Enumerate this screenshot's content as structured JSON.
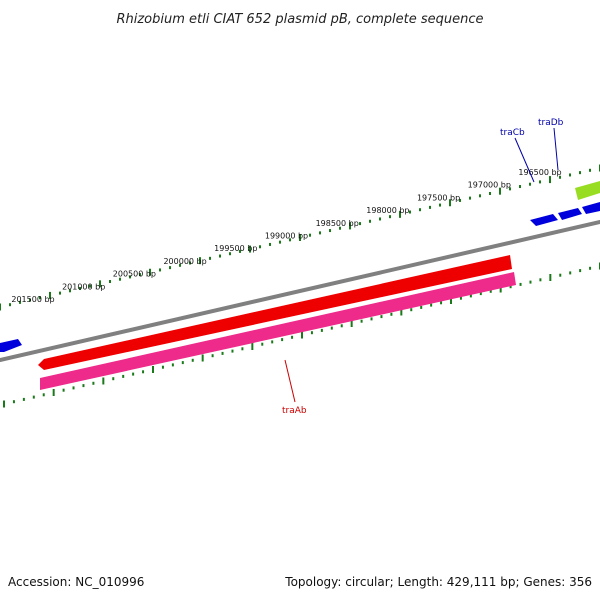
{
  "title": "Rhizobium etli CIAT 652 plasmid pB, complete sequence",
  "footer": {
    "accession": "Accession: NC_010996",
    "summary": "Topology: circular; Length: 429,111 bp; Genes: 356"
  },
  "colors": {
    "backbone": "#808080",
    "ticks": "#1a7a1a",
    "gene_blue": "#0000dd",
    "gene_red": "#ee0000",
    "gene_pink": "#ee2a8a",
    "gene_lime": "#99dd22",
    "label_red": "#cc0000",
    "label_blue": "#0000aa"
  },
  "ticks": [
    {
      "label": "196500 bp"
    },
    {
      "label": "197000 bp"
    },
    {
      "label": "197500 bp"
    },
    {
      "label": "198000 bp"
    },
    {
      "label": "198500 bp"
    },
    {
      "label": "199000 bp"
    },
    {
      "label": "199500 bp"
    },
    {
      "label": "200000 bp"
    },
    {
      "label": "200500 bp"
    },
    {
      "label": "201000 bp"
    },
    {
      "label": "201500 bp"
    }
  ],
  "genes": [
    {
      "label": "traCb",
      "color": "blue"
    },
    {
      "label": "traDb",
      "color": "blue"
    },
    {
      "label": "traAb",
      "color": "red"
    }
  ]
}
